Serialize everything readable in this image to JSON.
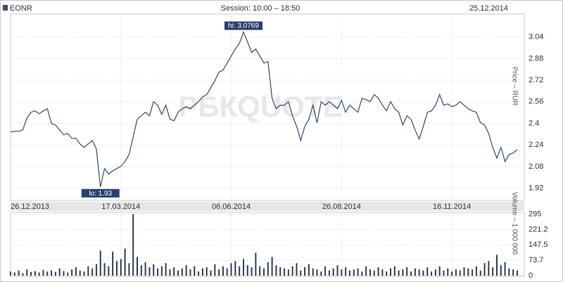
{
  "header": {
    "symbol": "EONR",
    "session": "Session: 10:00 – 18:50",
    "date": "25.12.2014"
  },
  "watermark": "РБКQUOTE",
  "chart_data": [
    {
      "type": "line",
      "y_label": "Price – RUR",
      "color": "#3a4a6e",
      "grid": true,
      "annotations": {
        "high": "hi: 3.0769",
        "low": "lo: 1.93"
      },
      "categories": [
        "26.12.2013",
        null,
        null,
        null,
        null,
        null,
        null,
        null,
        null,
        null,
        null,
        null,
        null,
        null,
        null,
        null,
        null,
        null,
        null,
        null,
        null,
        null,
        null,
        null,
        null,
        null,
        null,
        "17.03.2014",
        null,
        null,
        null,
        null,
        null,
        null,
        null,
        null,
        null,
        null,
        null,
        null,
        null,
        null,
        null,
        null,
        null,
        null,
        null,
        null,
        null,
        null,
        null,
        null,
        null,
        null,
        "06.06.2014",
        null,
        null,
        null,
        null,
        null,
        null,
        null,
        null,
        null,
        null,
        null,
        null,
        null,
        null,
        null,
        null,
        null,
        null,
        null,
        null,
        null,
        null,
        null,
        null,
        null,
        null,
        "26.08.2014",
        null,
        null,
        null,
        null,
        null,
        null,
        null,
        null,
        null,
        null,
        null,
        null,
        null,
        null,
        null,
        null,
        null,
        null,
        null,
        null,
        null,
        null,
        null,
        null,
        null,
        null,
        "16.11.2014",
        null,
        null,
        null,
        null,
        null,
        null,
        null,
        null,
        null,
        null,
        null,
        null,
        null,
        null,
        null,
        null
      ],
      "values": [
        2.337,
        2.342,
        2.342,
        2.352,
        2.44,
        2.483,
        2.493,
        2.472,
        2.493,
        2.509,
        2.399,
        2.389,
        2.352,
        2.316,
        2.326,
        2.29,
        2.29,
        2.248,
        2.222,
        2.248,
        2.274,
        2.212,
        1.93,
        2.066,
        2.024,
        2.05,
        2.066,
        2.082,
        2.118,
        2.17,
        2.3,
        2.431,
        2.457,
        2.483,
        2.457,
        2.561,
        2.535,
        2.467,
        2.535,
        2.431,
        2.42,
        2.483,
        2.509,
        2.524,
        2.509,
        2.535,
        2.561,
        2.597,
        2.613,
        2.665,
        2.717,
        2.78,
        2.795,
        2.847,
        2.899,
        2.951,
        2.993,
        3.0769,
        3.004,
        2.925,
        2.951,
        2.899,
        2.847,
        2.858,
        2.587,
        2.509,
        2.535,
        2.535,
        2.561,
        2.457,
        2.379,
        2.274,
        2.379,
        2.431,
        2.535,
        2.405,
        2.561,
        2.535,
        2.561,
        2.535,
        2.509,
        2.571,
        2.483,
        2.535,
        2.509,
        2.483,
        2.587,
        2.576,
        2.561,
        2.613,
        2.587,
        2.535,
        2.493,
        2.561,
        2.509,
        2.483,
        2.389,
        2.457,
        2.431,
        2.352,
        2.285,
        2.379,
        2.483,
        2.493,
        2.535,
        2.613,
        2.535,
        2.545,
        2.524,
        2.535,
        2.561,
        2.535,
        2.509,
        2.493,
        2.483,
        2.405,
        2.389,
        2.326,
        2.222,
        2.144,
        2.222,
        2.118,
        2.17,
        2.181,
        2.207
      ],
      "ylim": [
        1.83,
        3.21
      ],
      "yticks": [
        1.92,
        2.08,
        2.24,
        2.4,
        2.56,
        2.72,
        2.88,
        3.04
      ]
    },
    {
      "type": "bar",
      "y_label": "Volume – 1 000 000",
      "color": "#333d55",
      "grid": true,
      "values": [
        20,
        15,
        25,
        12,
        30,
        18,
        22,
        15,
        28,
        20,
        25,
        18,
        35,
        22,
        15,
        30,
        40,
        25,
        20,
        45,
        35,
        55,
        120,
        60,
        45,
        115,
        70,
        80,
        130,
        60,
        295,
        90,
        50,
        65,
        40,
        55,
        35,
        45,
        60,
        30,
        40,
        25,
        35,
        50,
        30,
        45,
        20,
        35,
        40,
        25,
        55,
        30,
        45,
        35,
        60,
        70,
        45,
        80,
        50,
        40,
        110,
        45,
        35,
        65,
        90,
        50,
        40,
        35,
        30,
        45,
        60,
        25,
        40,
        55,
        35,
        30,
        20,
        45,
        25,
        35,
        50,
        30,
        40,
        25,
        30,
        35,
        20,
        45,
        30,
        25,
        40,
        30,
        20,
        35,
        45,
        25,
        30,
        40,
        20,
        35,
        30,
        25,
        40,
        20,
        30,
        45,
        25,
        35,
        20,
        30,
        25,
        40,
        35,
        30,
        45,
        25,
        60,
        70,
        40,
        100,
        50,
        65,
        35,
        30,
        25
      ],
      "ylim": [
        0,
        300
      ],
      "yticks": [
        0,
        73.7,
        147.5,
        221.2,
        295
      ]
    }
  ]
}
